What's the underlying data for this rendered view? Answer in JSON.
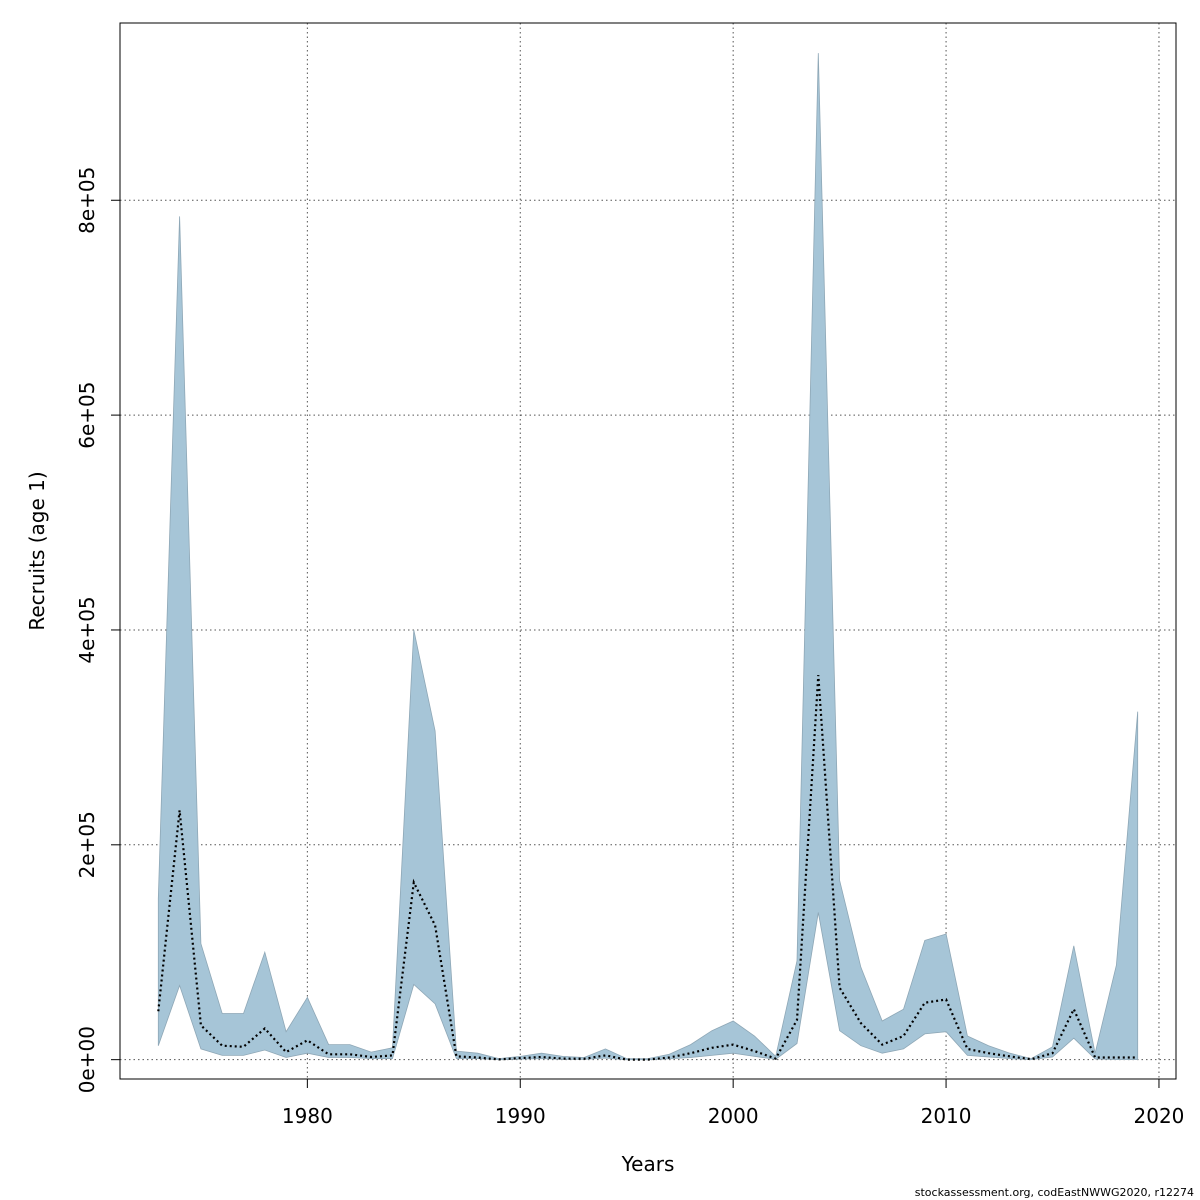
{
  "chart_data": {
    "type": "area",
    "xlabel": "Years",
    "ylabel": "Recruits (age 1)",
    "xlim": [
      1971.2,
      2020.8
    ],
    "ylim": [
      -18000,
      965000
    ],
    "x_ticks": [
      1980,
      1990,
      2000,
      2010,
      2020
    ],
    "y_ticks": [
      0,
      200000,
      400000,
      600000,
      800000
    ],
    "y_tick_labels": [
      "0e+00",
      "2e+05",
      "4e+05",
      "6e+05",
      "8e+05"
    ],
    "grid": true,
    "x": [
      1973,
      1974,
      1975,
      1976,
      1977,
      1978,
      1979,
      1980,
      1981,
      1982,
      1983,
      1984,
      1985,
      1986,
      1987,
      1988,
      1989,
      1990,
      1991,
      1992,
      1993,
      1994,
      1995,
      1996,
      1997,
      1998,
      1999,
      2000,
      2001,
      2002,
      2003,
      2004,
      2005,
      2006,
      2007,
      2008,
      2009,
      2010,
      2011,
      2012,
      2013,
      2014,
      2015,
      2016,
      2017,
      2018,
      2019
    ],
    "series": [
      {
        "role": "estimate",
        "values": [
          45000,
          232000,
          32000,
          13000,
          12000,
          29000,
          7000,
          18000,
          5000,
          5000,
          2500,
          4000,
          165000,
          125000,
          3000,
          2000,
          200,
          1500,
          2500,
          1000,
          800,
          4000,
          100,
          100,
          2000,
          6000,
          11000,
          14000,
          8000,
          1000,
          37000,
          358000,
          67000,
          34000,
          14000,
          22000,
          53000,
          56000,
          10000,
          6000,
          3000,
          400,
          6000,
          47000,
          2000,
          2000,
          2000
        ]
      },
      {
        "role": "upper",
        "values": [
          150000,
          785000,
          108000,
          43000,
          43000,
          100000,
          26000,
          58000,
          14000,
          14000,
          7000,
          11000,
          400000,
          306000,
          8000,
          6000,
          1000,
          3000,
          6000,
          3000,
          2000,
          10000,
          1000,
          1000,
          5000,
          14000,
          27000,
          36000,
          22000,
          3000,
          92000,
          937000,
          167000,
          86000,
          36000,
          47000,
          111000,
          117000,
          22000,
          13000,
          6000,
          1000,
          12000,
          106000,
          6000,
          88000,
          324000
        ]
      },
      {
        "role": "lower",
        "values": [
          13000,
          69000,
          10000,
          4000,
          4000,
          9000,
          2000,
          6000,
          2000,
          2000,
          1000,
          1000,
          70000,
          52000,
          1000,
          1000,
          0,
          500,
          1000,
          300,
          200,
          1500,
          0,
          0,
          700,
          2000,
          4000,
          6000,
          3000,
          300,
          15000,
          137000,
          27000,
          13000,
          6000,
          10000,
          24000,
          26000,
          4000,
          2500,
          1000,
          100,
          2500,
          20000,
          600,
          100,
          100
        ]
      }
    ],
    "band_color": "#a6c5d7",
    "band_edge_color": "#8ea7b6",
    "line_color": "#000000"
  },
  "credit": "stockassessment.org, codEastNWWG2020, r12274"
}
